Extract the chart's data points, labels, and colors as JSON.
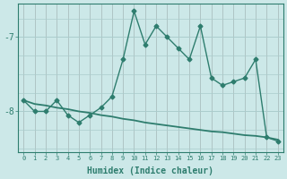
{
  "xlabel": "Humidex (Indice chaleur)",
  "background_color": "#cce8e8",
  "line_color": "#2e7d6e",
  "grid_color": "#aacccc",
  "xlim": [
    -0.5,
    23.5
  ],
  "ylim": [
    -8.55,
    -6.55
  ],
  "yticks": [
    -8,
    -7
  ],
  "xticks": [
    0,
    1,
    2,
    3,
    4,
    5,
    6,
    7,
    8,
    9,
    10,
    11,
    12,
    13,
    14,
    15,
    16,
    17,
    18,
    19,
    20,
    21,
    22,
    23
  ],
  "line1_x": [
    0,
    1,
    2,
    3,
    4,
    5,
    6,
    7,
    8,
    9,
    10,
    11,
    12,
    13,
    14,
    15,
    16,
    17,
    18,
    19,
    20,
    21,
    22,
    23
  ],
  "line1_y": [
    -7.85,
    -8.0,
    -8.0,
    -7.85,
    -8.05,
    -8.15,
    -8.05,
    -7.95,
    -7.8,
    -7.3,
    -6.65,
    -7.1,
    -6.85,
    -7.0,
    -7.15,
    -7.3,
    -6.85,
    -7.55,
    -7.65,
    -7.6,
    -7.55,
    -7.3,
    -8.35,
    -8.4
  ],
  "line2_x": [
    0,
    1,
    2,
    3,
    4,
    5,
    6,
    7,
    8,
    9,
    10,
    11,
    12,
    13,
    14,
    15,
    16,
    17,
    18,
    19,
    20,
    21,
    22,
    23
  ],
  "line2_y": [
    -7.85,
    -7.9,
    -7.92,
    -7.95,
    -7.97,
    -8.0,
    -8.02,
    -8.05,
    -8.07,
    -8.1,
    -8.12,
    -8.15,
    -8.17,
    -8.19,
    -8.21,
    -8.23,
    -8.25,
    -8.27,
    -8.28,
    -8.3,
    -8.32,
    -8.33,
    -8.35,
    -8.38
  ]
}
